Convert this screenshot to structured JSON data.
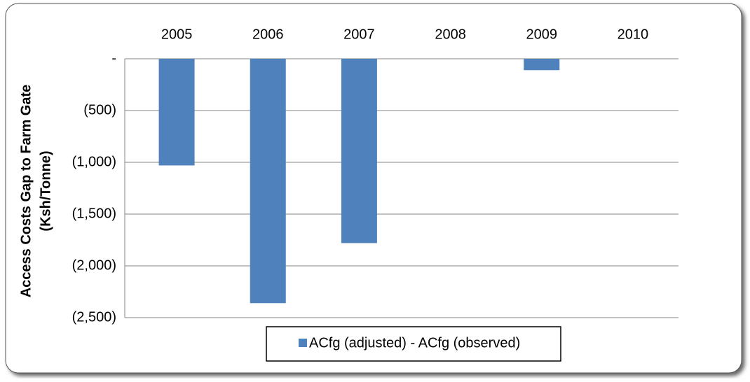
{
  "chart_data": {
    "type": "bar",
    "y_label": [
      "Access Costs Gap to Farm Gate",
      "(Ksh/Tonne)"
    ],
    "categories": [
      "2005",
      "2006",
      "2007",
      "2008",
      "2009",
      "2010"
    ],
    "series": [
      {
        "name": "ACfg (adjusted) - ACfg (observed)",
        "color": "#4f81bd",
        "values": [
          -1030,
          -2360,
          -1780,
          0,
          -110,
          0
        ]
      }
    ],
    "ylim": [
      -2500,
      0
    ],
    "yticks": [
      {
        "value": 0,
        "label": "-"
      },
      {
        "value": -500,
        "label": "(500)"
      },
      {
        "value": -1000,
        "label": "(1,000)"
      },
      {
        "value": -1500,
        "label": "(1,500)"
      },
      {
        "value": -2000,
        "label": "(2,000)"
      },
      {
        "value": -2500,
        "label": "(2,500)"
      }
    ],
    "grid": true,
    "legend": "bottom"
  }
}
